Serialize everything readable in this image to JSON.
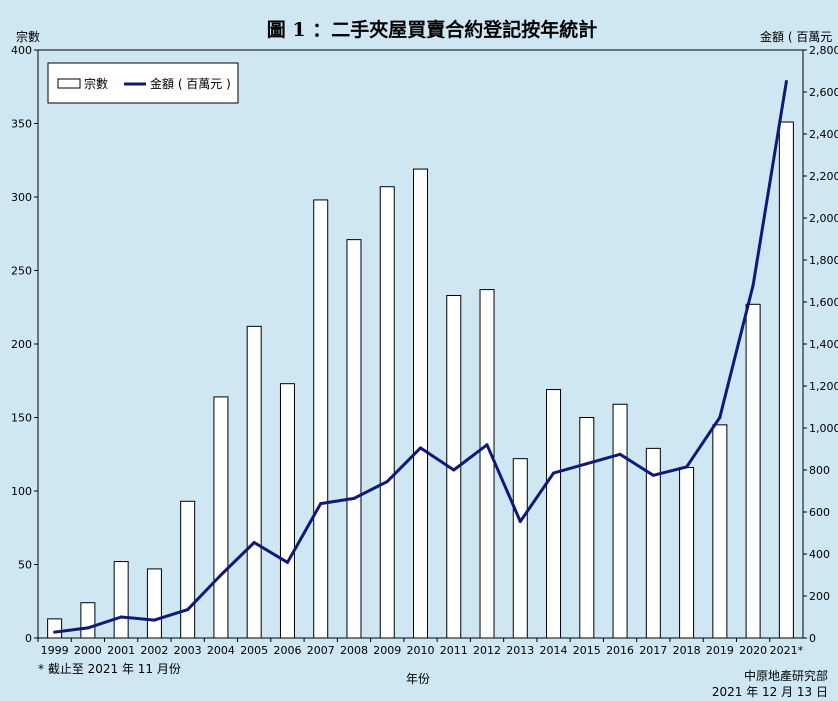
{
  "chart_data": {
    "type": "bar",
    "title": "圖 1 ：二手夾屋買賣合約登記按年統計",
    "y_left_label": "宗數",
    "y_right_label": "金額 ( 百萬元",
    "xlabel": "年份",
    "categories": [
      "1999",
      "2000",
      "2001",
      "2002",
      "2003",
      "2004",
      "2005",
      "2006",
      "2007",
      "2008",
      "2009",
      "2010",
      "2011",
      "2012",
      "2013",
      "2014",
      "2015",
      "2016",
      "2017",
      "2018",
      "2019",
      "2020",
      "2021*"
    ],
    "series": [
      {
        "name": "宗數",
        "type": "bar",
        "axis": "left",
        "values": [
          13,
          24,
          52,
          47,
          93,
          164,
          212,
          173,
          298,
          271,
          307,
          319,
          233,
          237,
          122,
          169,
          150,
          159,
          129,
          116,
          145,
          227,
          351
        ]
      },
      {
        "name": "金額 ( 百萬元 )",
        "type": "line",
        "axis": "right",
        "color": "#0d1a7a",
        "values": [
          28,
          48,
          100,
          85,
          135,
          300,
          455,
          360,
          640,
          665,
          745,
          905,
          800,
          920,
          555,
          785,
          830,
          875,
          775,
          815,
          1050,
          1680,
          2650
        ]
      }
    ],
    "y_left_range": [
      0,
      400
    ],
    "y_left_ticks": [
      "0",
      "50",
      "100",
      "150",
      "200",
      "250",
      "300",
      "350",
      "400"
    ],
    "y_right_range": [
      0,
      2800
    ],
    "y_right_ticks": [
      "0",
      "200",
      "400",
      "600",
      "800",
      "1,000",
      "1,200",
      "1,400",
      "1,600",
      "1,800",
      "2,000",
      "2,200",
      "2,400",
      "2,600",
      "2,800"
    ],
    "legend_position": "top-left",
    "grid": false
  },
  "footnote": "* 截止至 2021 年 11 月份",
  "source": "中原地產研究部",
  "date": "2021 年 12 月 13 日",
  "colors": {
    "background": "#cfe6f3",
    "bar_fill": "#ffffff",
    "bar_stroke": "#000000",
    "line": "#0d1a7a"
  }
}
